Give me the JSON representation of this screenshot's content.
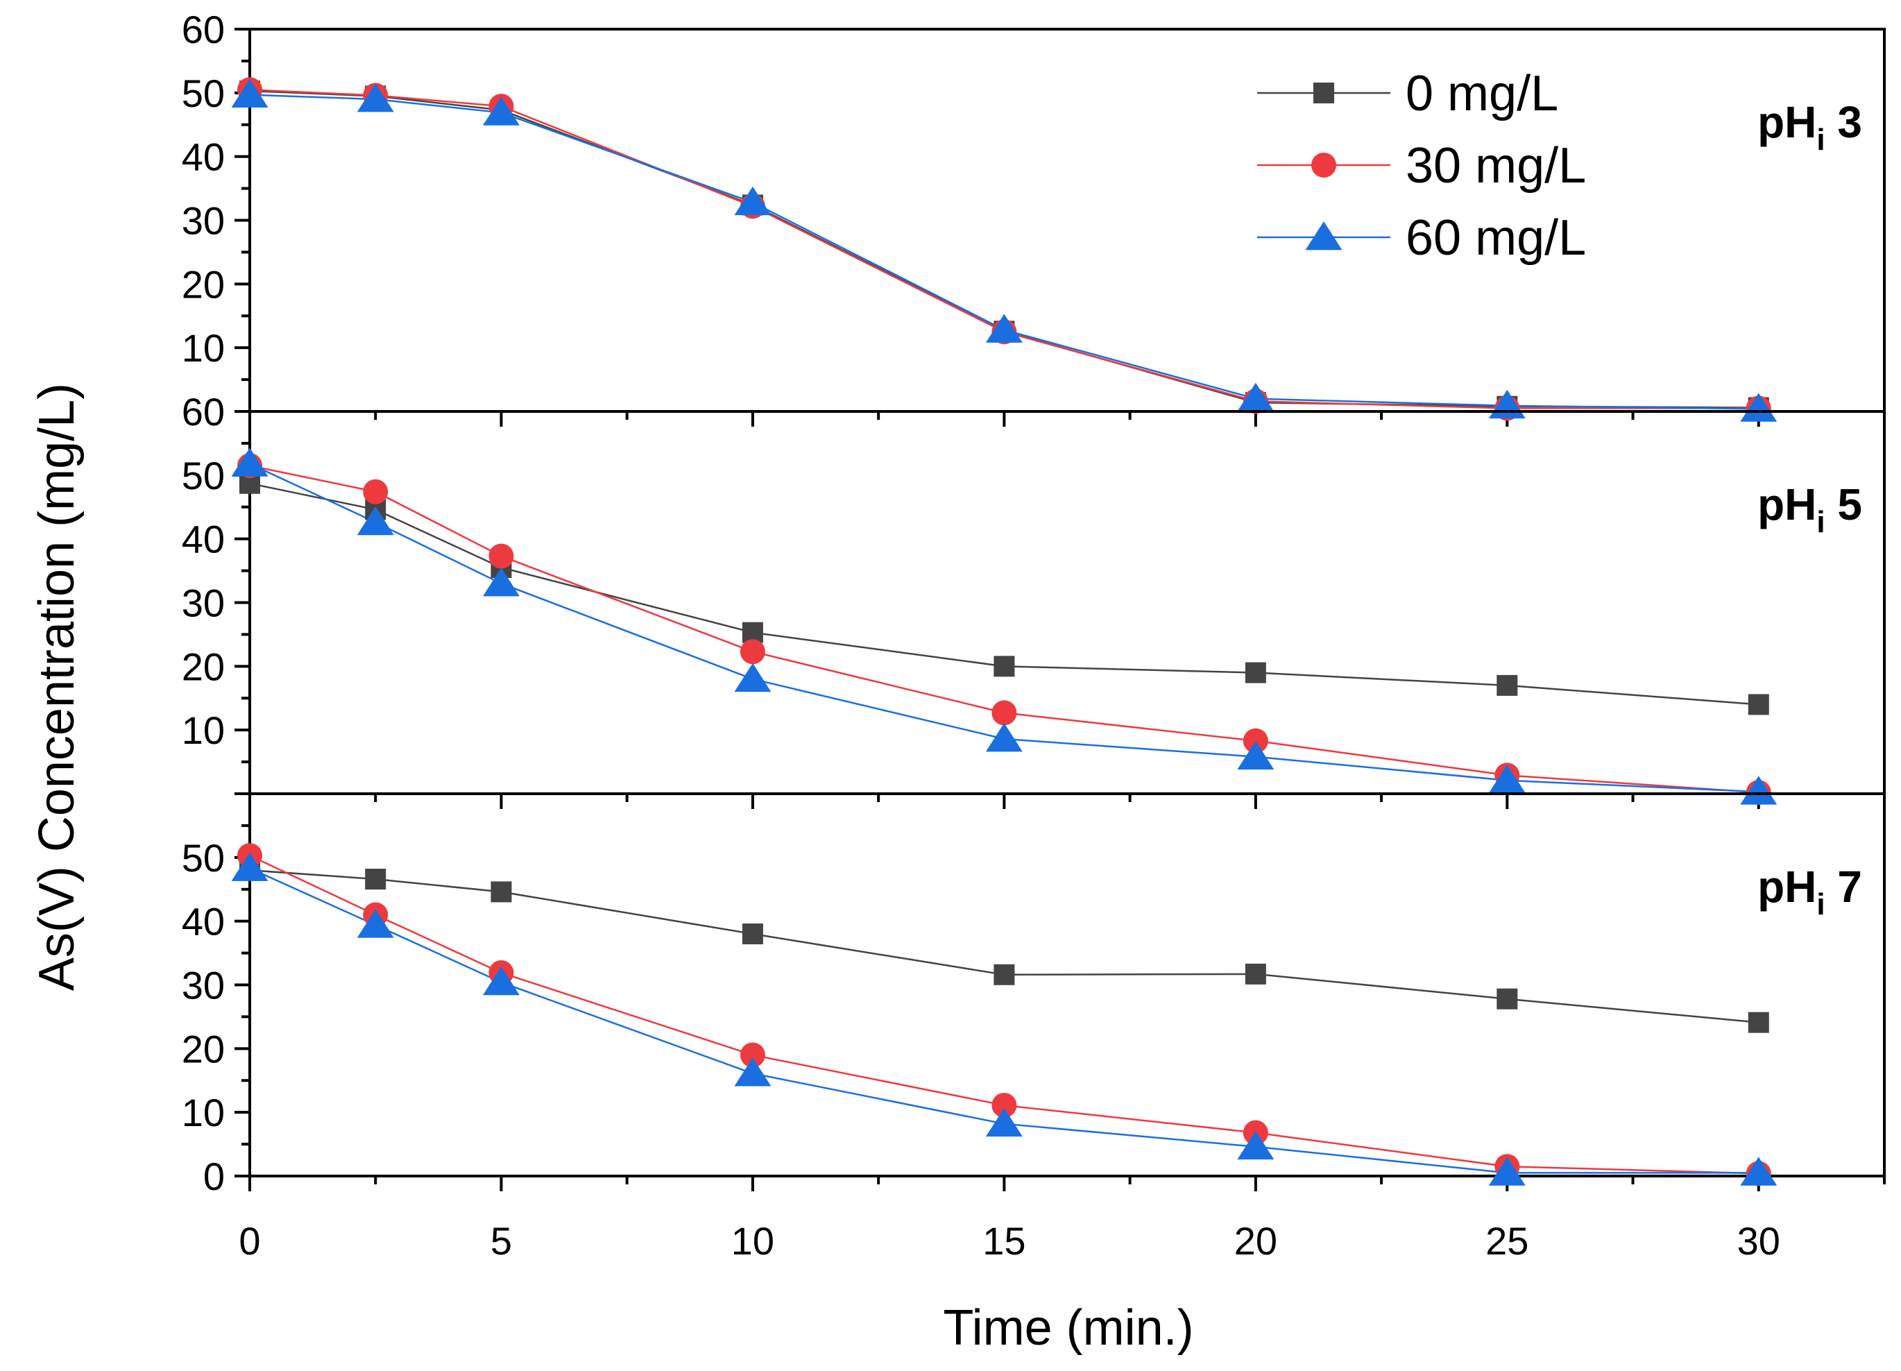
{
  "chart_data": {
    "type": "line",
    "xlabel": "Time (min.)",
    "ylabel": "As(V) Concentration (mg/L)",
    "xlim": [
      0,
      32.5
    ],
    "ylim": [
      0,
      60
    ],
    "x_ticks": [
      0,
      5,
      10,
      15,
      20,
      25,
      30
    ],
    "x_tick_labels": [
      "0",
      "5",
      "10",
      "15",
      "20",
      "25",
      "30"
    ],
    "x": [
      0,
      2.5,
      5,
      10,
      15,
      20,
      25,
      30
    ],
    "legend": {
      "placement": "top-right of top panel",
      "entries": [
        "0 mg/L",
        "30 mg/L",
        "60 mg/L"
      ]
    },
    "series_styles": [
      {
        "name": "0 mg/L",
        "color": "#444444",
        "marker": "square"
      },
      {
        "name": "30 mg/L",
        "color": "#ee3a3f",
        "marker": "circle"
      },
      {
        "name": "60 mg/L",
        "color": "#1a6fe0",
        "marker": "triangle"
      }
    ],
    "panels": [
      {
        "label_main": "pH",
        "label_sub": "i",
        "label_value": "3",
        "y_ticks": [
          10,
          20,
          30,
          40,
          50,
          60
        ],
        "y_tick_labels": [
          "10",
          "20",
          "30",
          "40",
          "50",
          "60"
        ],
        "series": [
          {
            "name": "0 mg/L",
            "values": [
              50.3,
              49.5,
              47.3,
              32.4,
              12.6,
              1.4,
              0.8,
              0.6
            ]
          },
          {
            "name": "30 mg/L",
            "values": [
              50.5,
              49.6,
              47.9,
              32.2,
              12.5,
              1.6,
              0.5,
              0.5
            ]
          },
          {
            "name": "60 mg/L",
            "values": [
              49.7,
              49.0,
              46.9,
              32.8,
              12.8,
              2.0,
              0.9,
              0.4
            ]
          }
        ]
      },
      {
        "label_main": "pH",
        "label_sub": "i",
        "label_value": "5",
        "y_ticks": [
          10,
          20,
          30,
          40,
          50,
          60
        ],
        "y_tick_labels": [
          "10",
          "20",
          "30",
          "40",
          "50",
          "60"
        ],
        "series": [
          {
            "name": "0 mg/L",
            "values": [
              48.7,
              44.6,
              35.5,
              25.3,
              20.0,
              19.0,
              17.0,
              14.0
            ]
          },
          {
            "name": "30 mg/L",
            "values": [
              51.5,
              47.4,
              37.3,
              22.3,
              12.7,
              8.3,
              2.9,
              0.2
            ]
          },
          {
            "name": "60 mg/L",
            "values": [
              51.8,
              42.6,
              33.0,
              18.0,
              8.6,
              5.8,
              2.1,
              0.3
            ]
          }
        ]
      },
      {
        "label_main": "pH",
        "label_sub": "i",
        "label_value": "7",
        "y_ticks": [
          0,
          10,
          20,
          30,
          40,
          50
        ],
        "y_tick_labels": [
          "0",
          "10",
          "20",
          "30",
          "40",
          "50"
        ],
        "series": [
          {
            "name": "0 mg/L",
            "values": [
              48.0,
              46.6,
              44.6,
              38.0,
              31.6,
              31.7,
              27.8,
              24.1
            ]
          },
          {
            "name": "30 mg/L",
            "values": [
              50.3,
              41.0,
              31.9,
              19.0,
              11.1,
              6.8,
              1.5,
              0.4
            ]
          },
          {
            "name": "60 mg/L",
            "values": [
              48.3,
              39.4,
              30.4,
              16.1,
              8.2,
              4.6,
              0.5,
              0.5
            ]
          }
        ]
      }
    ]
  }
}
